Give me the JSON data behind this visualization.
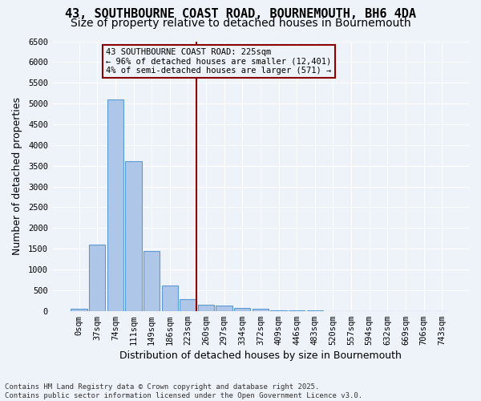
{
  "title_line1": "43, SOUTHBOURNE COAST ROAD, BOURNEMOUTH, BH6 4DA",
  "title_line2": "Size of property relative to detached houses in Bournemouth",
  "xlabel": "Distribution of detached houses by size in Bournemouth",
  "ylabel": "Number of detached properties",
  "annotation_line1": "43 SOUTHBOURNE COAST ROAD: 225sqm",
  "annotation_line2": "← 96% of detached houses are smaller (12,401)",
  "annotation_line3": "4% of semi-detached houses are larger (571) →",
  "footer_line1": "Contains HM Land Registry data © Crown copyright and database right 2025.",
  "footer_line2": "Contains public sector information licensed under the Open Government Licence v3.0.",
  "bin_labels": [
    "0sqm",
    "37sqm",
    "74sqm",
    "111sqm",
    "149sqm",
    "186sqm",
    "223sqm",
    "260sqm",
    "297sqm",
    "334sqm",
    "372sqm",
    "409sqm",
    "446sqm",
    "483sqm",
    "520sqm",
    "557sqm",
    "594sqm",
    "632sqm",
    "669sqm",
    "706sqm",
    "743sqm"
  ],
  "bar_values": [
    50,
    1600,
    5100,
    3600,
    1450,
    620,
    290,
    155,
    120,
    80,
    50,
    20,
    10,
    5,
    2,
    1,
    0,
    0,
    0,
    0,
    0
  ],
  "bar_color": "#aec6e8",
  "bar_edge_color": "#5b9bd5",
  "marker_bin": 6,
  "marker_color": "#8b0000",
  "ylim": [
    0,
    6500
  ],
  "yticks": [
    0,
    500,
    1000,
    1500,
    2000,
    2500,
    3000,
    3500,
    4000,
    4500,
    5000,
    5500,
    6000,
    6500
  ],
  "background_color": "#eef3fa",
  "grid_color": "#ffffff",
  "title_fontsize": 11,
  "subtitle_fontsize": 10,
  "axis_label_fontsize": 9,
  "tick_fontsize": 7.5,
  "footer_fontsize": 6.5,
  "annotation_fontsize": 7.5
}
